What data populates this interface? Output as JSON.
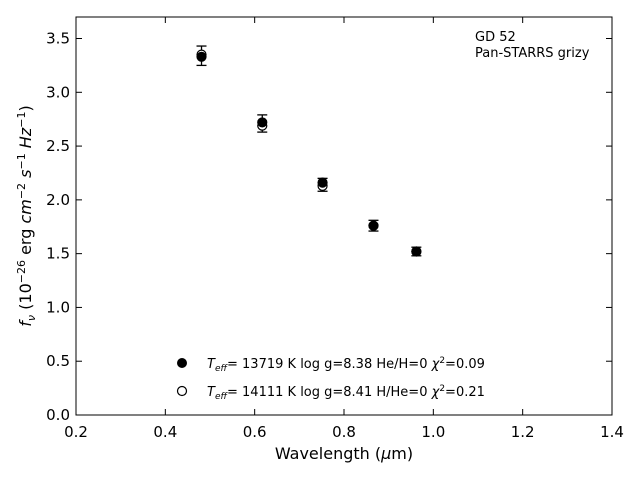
{
  "chart_data": {
    "type": "scatter",
    "annotations": [
      "GD 52",
      "Pan-STARRS grizy"
    ],
    "xlabel": "Wavelength (μm)",
    "ylabel": "f_ν (10^-26 erg cm^-2 s^-1 Hz^-1)",
    "xlim": [
      0.2,
      1.4
    ],
    "ylim": [
      0.0,
      3.7
    ],
    "xticks": [
      "0.2",
      "0.4",
      "0.6",
      "0.8",
      "1.0",
      "1.2",
      "1.4"
    ],
    "yticks": [
      "0.0",
      "0.5",
      "1.0",
      "1.5",
      "2.0",
      "2.5",
      "3.0",
      "3.5"
    ],
    "grid": false,
    "legend_position": "bottom-center",
    "observed": {
      "x": [
        0.481,
        0.617,
        0.752,
        0.866,
        0.962
      ],
      "y": [
        3.34,
        2.71,
        2.14,
        1.76,
        1.52
      ],
      "yerr": [
        0.09,
        0.08,
        0.06,
        0.05,
        0.04
      ]
    },
    "series": [
      {
        "name": "T_eff= 13719 K  log g=8.38  He/H=0  χ²=0.09",
        "marker": "filled-circle",
        "x": [
          0.481,
          0.617,
          0.752,
          0.866,
          0.962
        ],
        "y": [
          3.33,
          2.72,
          2.16,
          1.76,
          1.52
        ]
      },
      {
        "name": "T_eff= 14111 K  log g=8.41  H/He=0  χ²=0.21",
        "marker": "open-circle",
        "x": [
          0.481,
          0.617,
          0.752,
          0.866,
          0.962
        ],
        "y": [
          3.35,
          2.69,
          2.13,
          1.76,
          1.52
        ]
      }
    ],
    "legend": [
      {
        "teff": "13719 K",
        "logg": "log g=8.38",
        "comp": "He/H=0",
        "chi2": "=0.09"
      },
      {
        "teff": "14111 K",
        "logg": "log g=8.41",
        "comp": "H/He=0",
        "chi2": "=0.21"
      }
    ]
  }
}
